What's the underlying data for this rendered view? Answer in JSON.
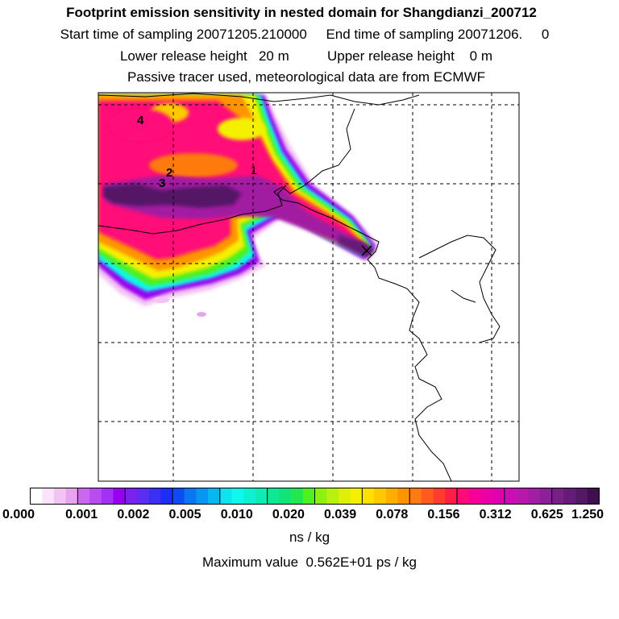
{
  "header": {
    "title": "Footprint emission sensitivity in nested domain for Shangdianzi_200712",
    "sampling_line": "Start time of sampling 20071205.210000     End time of sampling 20071206.     0",
    "release_line": "Lower release height   20 m          Upper release height    0 m",
    "tracer_line": "Passive tracer used, meteorological data are from ECMWF"
  },
  "map": {
    "point_labels": [
      "4",
      "2",
      "3",
      "1"
    ],
    "receptor_marker": "x-icon"
  },
  "colorbar": {
    "tick_labels": [
      "0.000",
      "0.001",
      "0.002",
      "0.005",
      "0.010",
      "0.020",
      "0.039",
      "0.078",
      "0.156",
      "0.312",
      "0.625",
      "1.250"
    ],
    "tick_values": [
      0.0,
      0.001,
      0.002,
      0.005,
      0.01,
      0.02,
      0.039,
      0.078,
      0.156,
      0.312,
      0.625,
      1.25
    ],
    "colors": [
      "#ffffff",
      "#fbe3fb",
      "#f3c3f3",
      "#e8a3ef",
      "#cc66ee",
      "#b84cf0",
      "#a330f5",
      "#9a00f0",
      "#7a22f0",
      "#5c2cf2",
      "#3a30f5",
      "#1e2ef8",
      "#0d4cf4",
      "#0a76f2",
      "#0896f2",
      "#08b6f0",
      "#0ee4f0",
      "#0ef8ee",
      "#0ef0d2",
      "#0eecb4",
      "#0ee896",
      "#0ee478",
      "#22e850",
      "#4ef020",
      "#8cf010",
      "#b8f010",
      "#dcf008",
      "#f4f000",
      "#ffe000",
      "#ffc800",
      "#ffae00",
      "#ff9400",
      "#ff7a10",
      "#ff5a20",
      "#ff3c30",
      "#ff1e46",
      "#ff0a78",
      "#f7009a",
      "#ec00a6",
      "#e000b0",
      "#cc0cb4",
      "#b818ac",
      "#a21ea2",
      "#8c2096",
      "#762088",
      "#641c78",
      "#541866",
      "#3e1050"
    ],
    "units": "ns / kg"
  },
  "max_value_text": "Maximum value  0.562E+01 ps / kg"
}
